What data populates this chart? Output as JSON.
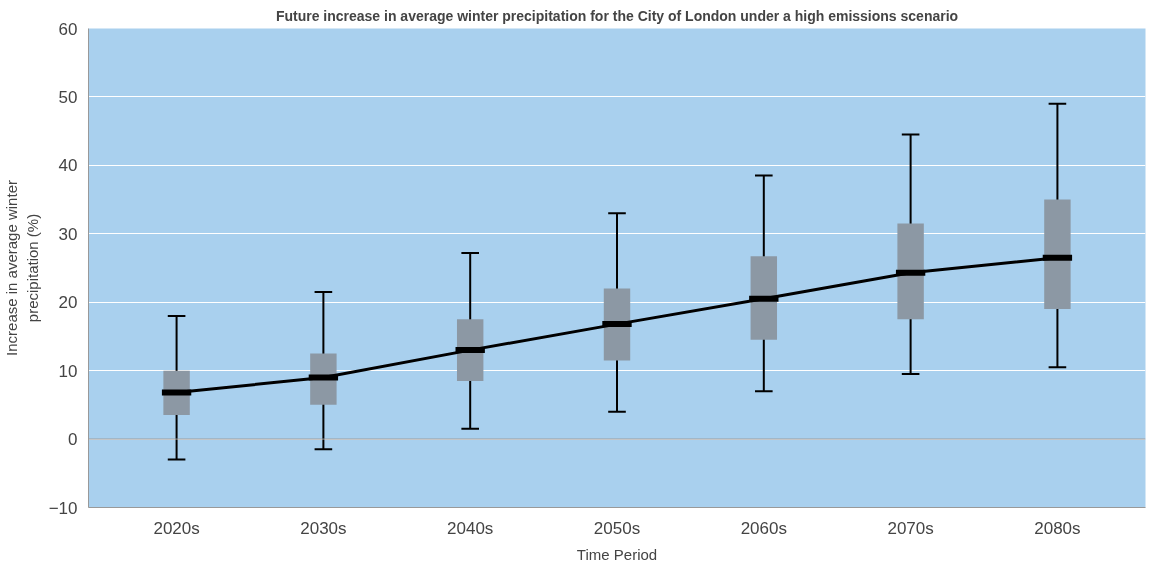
{
  "chart_data": {
    "type": "box",
    "title": "Future increase in average winter precipitation for the City of London under a high emissions scenario",
    "xlabel": "Time Period",
    "ylabel": "Increase in average winter precipitation (%)",
    "categories": [
      "2020s",
      "2030s",
      "2040s",
      "2050s",
      "2060s",
      "2070s",
      "2080s"
    ],
    "color": "#8c98a4",
    "boxes": [
      {
        "low": -3,
        "q1": 3.5,
        "median": 6.8,
        "q3": 10,
        "high": 18
      },
      {
        "low": -1.5,
        "q1": 5,
        "median": 9,
        "q3": 12.5,
        "high": 21.5
      },
      {
        "low": 1.5,
        "q1": 8.5,
        "median": 13,
        "q3": 17.5,
        "high": 27.2
      },
      {
        "low": 4,
        "q1": 11.5,
        "median": 16.8,
        "q3": 22,
        "high": 33
      },
      {
        "low": 7,
        "q1": 14.5,
        "median": 20.5,
        "q3": 26.7,
        "high": 38.5
      },
      {
        "low": 9.5,
        "q1": 17.5,
        "median": 24.3,
        "q3": 31.5,
        "high": 44.5
      },
      {
        "low": 10.5,
        "q1": 19,
        "median": 26.5,
        "q3": 35,
        "high": 49
      }
    ],
    "series": [
      {
        "type": "line",
        "color": "#000000",
        "values": [
          6.8,
          9,
          13,
          16.8,
          20.5,
          24.3,
          26.5
        ]
      }
    ],
    "ylim": [
      -10,
      60
    ],
    "yticks": [
      -10,
      0,
      10,
      20,
      30,
      40,
      50,
      60
    ],
    "grid": "y",
    "ref_lines": [
      {
        "axis": "y",
        "value": 0,
        "color": "#999999"
      }
    ]
  }
}
